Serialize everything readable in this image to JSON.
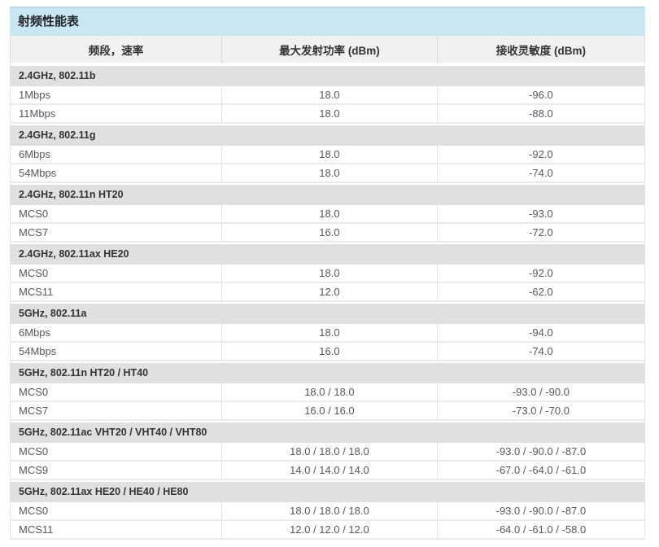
{
  "page": {
    "title": "射频性能表"
  },
  "colors": {
    "title_bar_bg": "#c9e6f3",
    "title_bar_top_border": "#b9d8e5",
    "header_row_bg": "#f1f1f1",
    "section_row_bg": "#e0e0e0",
    "row_divider": "#ebebeb",
    "data_text": "#55595e",
    "heading_text": "#333333"
  },
  "table": {
    "columns": [
      "频段，速率",
      "最大发射功率 (dBm)",
      "接收灵敏度 (dBm)"
    ],
    "sections": [
      {
        "label": "2.4GHz, 802.11b",
        "rows": [
          {
            "rate": "1Mbps",
            "tx_power": "18.0",
            "rx_sensitivity": "-96.0"
          },
          {
            "rate": "11Mbps",
            "tx_power": "18.0",
            "rx_sensitivity": "-88.0"
          }
        ]
      },
      {
        "label": "2.4GHz, 802.11g",
        "rows": [
          {
            "rate": "6Mbps",
            "tx_power": "18.0",
            "rx_sensitivity": "-92.0"
          },
          {
            "rate": "54Mbps",
            "tx_power": "18.0",
            "rx_sensitivity": "-74.0"
          }
        ]
      },
      {
        "label": "2.4GHz, 802.11n HT20",
        "rows": [
          {
            "rate": "MCS0",
            "tx_power": "18.0",
            "rx_sensitivity": "-93.0"
          },
          {
            "rate": "MCS7",
            "tx_power": "16.0",
            "rx_sensitivity": "-72.0"
          }
        ]
      },
      {
        "label": "2.4GHz, 802.11ax HE20",
        "rows": [
          {
            "rate": "MCS0",
            "tx_power": "18.0",
            "rx_sensitivity": "-92.0"
          },
          {
            "rate": "MCS11",
            "tx_power": "12.0",
            "rx_sensitivity": "-62.0"
          }
        ]
      },
      {
        "label": "5GHz, 802.11a",
        "rows": [
          {
            "rate": "6Mbps",
            "tx_power": "18.0",
            "rx_sensitivity": "-94.0"
          },
          {
            "rate": "54Mbps",
            "tx_power": "16.0",
            "rx_sensitivity": "-74.0"
          }
        ]
      },
      {
        "label": "5GHz, 802.11n HT20 / HT40",
        "rows": [
          {
            "rate": "MCS0",
            "tx_power": "18.0 / 18.0",
            "rx_sensitivity": "-93.0 / -90.0"
          },
          {
            "rate": "MCS7",
            "tx_power": "16.0 / 16.0",
            "rx_sensitivity": "-73.0 / -70.0"
          }
        ]
      },
      {
        "label": "5GHz, 802.11ac VHT20 / VHT40 / VHT80",
        "rows": [
          {
            "rate": "MCS0",
            "tx_power": "18.0 / 18.0 / 18.0",
            "rx_sensitivity": "-93.0 / -90.0 / -87.0"
          },
          {
            "rate": "MCS9",
            "tx_power": "14.0 / 14.0 / 14.0",
            "rx_sensitivity": "-67.0 / -64.0 / -61.0"
          }
        ]
      },
      {
        "label": "5GHz, 802.11ax HE20 / HE40 / HE80",
        "rows": [
          {
            "rate": "MCS0",
            "tx_power": "18.0 / 18.0 / 18.0",
            "rx_sensitivity": "-93.0 / -90.0 / -87.0"
          },
          {
            "rate": "MCS11",
            "tx_power": "12.0 / 12.0 / 12.0",
            "rx_sensitivity": "-64.0 / -61.0 / -58.0"
          }
        ]
      }
    ]
  }
}
